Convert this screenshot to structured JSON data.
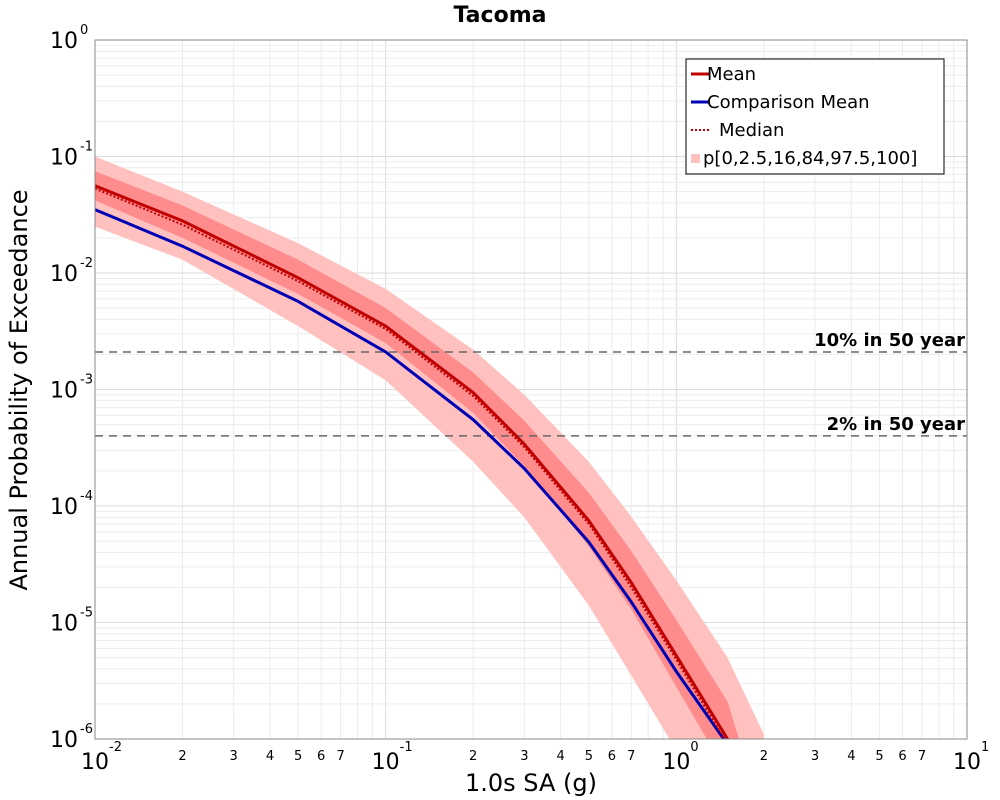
{
  "chart_data": {
    "type": "line",
    "title": "Tacoma",
    "xlabel": "1.0s SA (g)",
    "ylabel": "Annual Probability of Exceedance",
    "xscale": "log",
    "yscale": "log",
    "xlim": [
      0.01,
      10
    ],
    "ylim": [
      1e-06,
      1
    ],
    "x_major_ticks": [
      {
        "base": "10",
        "exp": "-2"
      },
      {
        "base": "10",
        "exp": "-1"
      },
      {
        "base": "10",
        "exp": "0"
      },
      {
        "base": "10",
        "exp": "1"
      }
    ],
    "y_major_ticks": [
      {
        "base": "10",
        "exp": "0"
      },
      {
        "base": "10",
        "exp": "-1"
      },
      {
        "base": "10",
        "exp": "-2"
      },
      {
        "base": "10",
        "exp": "-3"
      },
      {
        "base": "10",
        "exp": "-4"
      },
      {
        "base": "10",
        "exp": "-5"
      },
      {
        "base": "10",
        "exp": "-6"
      }
    ],
    "x_minor_tick_labels": [
      "2",
      "3",
      "4",
      "5",
      "6",
      "7"
    ],
    "grid": true,
    "legend_position": "top-right",
    "legend": [
      {
        "label": "Mean",
        "style": "solid",
        "color": "#c00000"
      },
      {
        "label": "Comparison Mean",
        "style": "solid",
        "color": "#0000b4"
      },
      {
        "label": "Median",
        "style": "dotted",
        "color": "#c00000"
      },
      {
        "label": "p[0,2.5,16,84,97.5,100]",
        "style": "band",
        "color": "#ffc0c0"
      }
    ],
    "reference_lines": [
      {
        "label": "10% in 50 year",
        "y": 0.0021
      },
      {
        "label": "2% in 50 year",
        "y": 0.0004
      }
    ],
    "x": [
      0.01,
      0.02,
      0.05,
      0.1,
      0.2,
      0.3,
      0.5,
      0.7,
      1.0,
      1.5,
      2.0
    ],
    "series": [
      {
        "name": "Mean",
        "color": "#c00000",
        "style": "solid",
        "values": [
          0.056,
          0.028,
          0.0091,
          0.0035,
          0.00094,
          0.00034,
          7.5e-05,
          2.2e-05,
          5.2e-06,
          1e-06,
          null
        ]
      },
      {
        "name": "Comparison Mean",
        "color": "#0000b4",
        "style": "solid",
        "values": [
          0.035,
          0.017,
          0.0057,
          0.0021,
          0.00055,
          0.00021,
          4.9e-05,
          1.5e-05,
          3.8e-06,
          9e-07,
          null
        ]
      },
      {
        "name": "Median",
        "color": "#c00000",
        "style": "dotted",
        "values": [
          0.053,
          0.026,
          0.0085,
          0.0033,
          0.00088,
          0.00032,
          7e-05,
          2e-05,
          4.8e-06,
          9e-07,
          null
        ]
      }
    ],
    "bands": [
      {
        "name": "p[0,2.5,16,84,97.5,100] outer",
        "color": "#ffc0c0",
        "lower": [
          0.025,
          0.013,
          0.0035,
          0.0012,
          0.00024,
          8e-05,
          1.4e-05,
          3.5e-06,
          8e-07,
          1.5e-07,
          null
        ],
        "upper": [
          0.1,
          0.05,
          0.018,
          0.0073,
          0.0022,
          0.0009,
          0.00024,
          8.1e-05,
          2.3e-05,
          5e-06,
          1.1e-06
        ]
      },
      {
        "name": "p[0,2.5,16,84,97.5,100] inner",
        "color": "#ff8c8c",
        "lower": [
          0.042,
          0.02,
          0.0066,
          0.0025,
          0.00063,
          0.00022,
          4.5e-05,
          1.3e-05,
          2.8e-06,
          5e-07,
          null
        ],
        "upper": [
          0.075,
          0.038,
          0.013,
          0.005,
          0.0014,
          0.00054,
          0.00013,
          4.1e-05,
          1.05e-05,
          2.1e-06,
          null
        ]
      }
    ]
  }
}
